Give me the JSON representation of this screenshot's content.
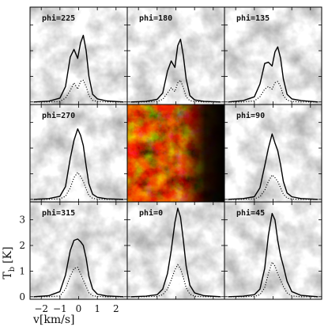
{
  "chart_data": {
    "type": "line",
    "layout": "3x3 grid of spectra panels over grayscale column-density maps; centre panel is a colour map",
    "xlabel": "v[km/s]",
    "ylabel": "T_b [K]",
    "ylabel_main": "T",
    "ylabel_sub": "b",
    "ylabel_unit": "[K]",
    "xlim": [
      -2.6,
      2.6
    ],
    "ylim": [
      -0.1,
      3.7
    ],
    "xticks": [
      -2,
      -1,
      0,
      1,
      2
    ],
    "xtick_labels": [
      "−2",
      "−1",
      "0",
      "1",
      "2"
    ],
    "yticks": [
      0,
      1,
      2,
      3
    ],
    "ytick_labels": [
      "0",
      "1",
      "2",
      "3"
    ],
    "colors": {
      "solid": "#000000",
      "dotted": "#000000",
      "center_map": [
        "#000000",
        "#3a0400",
        "#8a1400",
        "#d23a00",
        "#ff8c1e",
        "#ffe060"
      ]
    },
    "panels": [
      {
        "label": "phi=225",
        "row": 0,
        "col": 0,
        "map_seed": 11,
        "x": [
          -2.4,
          -1.6,
          -1.0,
          -0.7,
          -0.45,
          -0.25,
          -0.05,
          0.1,
          0.25,
          0.4,
          0.55,
          0.75,
          1.0,
          1.5,
          2.4
        ],
        "solid": [
          0,
          0.03,
          0.15,
          0.6,
          1.75,
          2.05,
          1.7,
          2.3,
          2.6,
          2.0,
          1.0,
          0.3,
          0.12,
          0.04,
          0
        ],
        "dotted": [
          0,
          0,
          0.02,
          0.15,
          0.45,
          0.75,
          0.5,
          0.8,
          0.85,
          0.6,
          0.25,
          0.06,
          0.02,
          0,
          0
        ]
      },
      {
        "label": "phi=180",
        "row": 0,
        "col": 1,
        "map_seed": 23,
        "x": [
          -2.4,
          -1.6,
          -1.0,
          -0.7,
          -0.45,
          -0.25,
          -0.05,
          0.1,
          0.25,
          0.4,
          0.55,
          0.75,
          1.0,
          1.5,
          2.4
        ],
        "solid": [
          0,
          0.02,
          0.1,
          0.35,
          1.2,
          1.6,
          1.35,
          2.2,
          2.45,
          1.8,
          0.9,
          0.25,
          0.08,
          0.02,
          0
        ],
        "dotted": [
          0,
          0,
          0.02,
          0.1,
          0.35,
          0.55,
          0.4,
          0.75,
          0.85,
          0.55,
          0.2,
          0.05,
          0.01,
          0,
          0
        ]
      },
      {
        "label": "phi=135",
        "row": 0,
        "col": 2,
        "map_seed": 37,
        "x": [
          -2.4,
          -1.6,
          -1.0,
          -0.7,
          -0.45,
          -0.25,
          -0.05,
          0.1,
          0.25,
          0.4,
          0.55,
          0.75,
          1.0,
          1.5,
          2.4
        ],
        "solid": [
          0,
          0.05,
          0.2,
          0.7,
          1.5,
          1.55,
          1.4,
          1.95,
          2.15,
          1.7,
          0.9,
          0.3,
          0.12,
          0.05,
          0
        ],
        "dotted": [
          0,
          0,
          0.04,
          0.2,
          0.5,
          0.6,
          0.5,
          0.75,
          0.8,
          0.6,
          0.25,
          0.07,
          0.02,
          0,
          0
        ]
      },
      {
        "label": "phi=270",
        "row": 1,
        "col": 0,
        "map_seed": 41,
        "x": [
          -2.4,
          -1.6,
          -1.0,
          -0.7,
          -0.45,
          -0.25,
          -0.05,
          0.1,
          0.25,
          0.4,
          0.55,
          0.75,
          1.0,
          1.5,
          2.4
        ],
        "solid": [
          0,
          0.03,
          0.12,
          0.5,
          1.6,
          2.3,
          2.75,
          2.5,
          2.1,
          1.3,
          0.6,
          0.2,
          0.08,
          0.02,
          0
        ],
        "dotted": [
          0,
          0,
          0.02,
          0.12,
          0.45,
          0.85,
          1.05,
          0.9,
          0.7,
          0.4,
          0.15,
          0.04,
          0.01,
          0,
          0
        ]
      },
      {
        "label": "phi=90",
        "row": 1,
        "col": 2,
        "map_seed": 53,
        "x": [
          -2.4,
          -1.6,
          -1.0,
          -0.7,
          -0.45,
          -0.25,
          -0.05,
          0.1,
          0.25,
          0.4,
          0.55,
          0.75,
          1.0,
          1.5,
          2.4
        ],
        "solid": [
          0,
          0.03,
          0.1,
          0.45,
          1.3,
          2.0,
          2.55,
          2.2,
          1.9,
          1.35,
          0.7,
          0.25,
          0.1,
          0.03,
          0
        ],
        "dotted": [
          0,
          0,
          0.02,
          0.1,
          0.35,
          0.7,
          0.95,
          0.85,
          0.7,
          0.45,
          0.2,
          0.05,
          0.01,
          0,
          0
        ]
      },
      {
        "label": "phi=315",
        "row": 2,
        "col": 0,
        "map_seed": 67,
        "x": [
          -2.4,
          -1.6,
          -1.0,
          -0.7,
          -0.45,
          -0.25,
          -0.05,
          0.1,
          0.25,
          0.4,
          0.55,
          0.75,
          1.0,
          1.5,
          2.4
        ],
        "solid": [
          0,
          0.04,
          0.2,
          0.85,
          1.8,
          2.2,
          2.25,
          2.15,
          2.0,
          1.5,
          0.8,
          0.3,
          0.1,
          0.03,
          0
        ],
        "dotted": [
          0,
          0,
          0.03,
          0.3,
          0.8,
          1.1,
          1.15,
          0.9,
          0.65,
          0.4,
          0.15,
          0.04,
          0.01,
          0,
          0
        ]
      },
      {
        "label": "phi=0",
        "row": 2,
        "col": 1,
        "map_seed": 79,
        "x": [
          -2.4,
          -1.6,
          -1.0,
          -0.7,
          -0.45,
          -0.25,
          -0.05,
          0.1,
          0.25,
          0.4,
          0.55,
          0.75,
          1.0,
          1.5,
          2.4
        ],
        "solid": [
          0,
          0.02,
          0.08,
          0.3,
          0.9,
          1.8,
          2.9,
          3.45,
          3.1,
          2.2,
          1.2,
          0.45,
          0.15,
          0.04,
          0
        ],
        "dotted": [
          0,
          0,
          0.01,
          0.08,
          0.3,
          0.65,
          1.05,
          1.25,
          1.1,
          0.75,
          0.35,
          0.1,
          0.02,
          0,
          0
        ]
      },
      {
        "label": "phi=45",
        "row": 2,
        "col": 2,
        "map_seed": 83,
        "x": [
          -2.4,
          -1.6,
          -1.0,
          -0.7,
          -0.45,
          -0.25,
          -0.05,
          0.1,
          0.25,
          0.4,
          0.55,
          0.75,
          1.0,
          1.5,
          2.4
        ],
        "solid": [
          0,
          0.02,
          0.08,
          0.3,
          1.1,
          2.4,
          3.25,
          3.0,
          2.2,
          1.6,
          1.2,
          0.6,
          0.2,
          0.05,
          0
        ],
        "dotted": [
          0,
          0,
          0.01,
          0.08,
          0.35,
          0.9,
          1.35,
          1.2,
          0.9,
          0.65,
          0.4,
          0.15,
          0.03,
          0,
          0
        ]
      }
    ]
  }
}
